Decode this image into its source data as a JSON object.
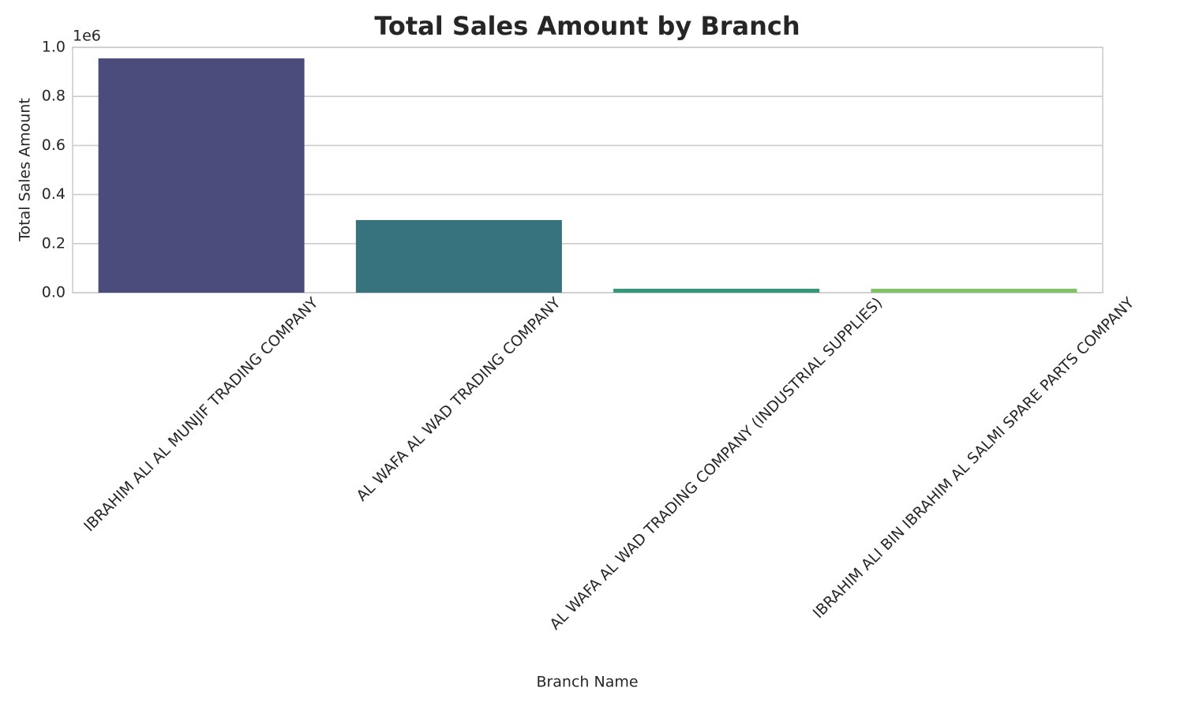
{
  "chart_data": {
    "type": "bar",
    "title": "Total Sales Amount by Branch",
    "x_label": "Branch Name",
    "y_label": "Total Sales Amount",
    "y_offset_label": "1e6",
    "categories": [
      "IBRAHIM ALI AL MUNJIF TRADING COMPANY",
      "AL WAFA AL WAD TRADING COMPANY",
      "AL WAFA AL WAD TRADING COMPANY (INDUSTRIAL SUPPLIES)",
      "IBRAHIM ALI BIN IBRAHIM AL SALMI SPARE PARTS COMPANY"
    ],
    "values": [
      955000,
      296000,
      16000,
      16000
    ],
    "colors": [
      "#4b4c7c",
      "#37727f",
      "#34977a",
      "#80c165"
    ],
    "ylim": [
      0,
      1000000
    ],
    "yticks": [
      {
        "value": 0,
        "label": "0.0"
      },
      {
        "value": 200000,
        "label": "0.2"
      },
      {
        "value": 400000,
        "label": "0.4"
      },
      {
        "value": 600000,
        "label": "0.6"
      },
      {
        "value": 800000,
        "label": "0.8"
      },
      {
        "value": 1000000,
        "label": "1.0"
      }
    ],
    "grid": true
  }
}
